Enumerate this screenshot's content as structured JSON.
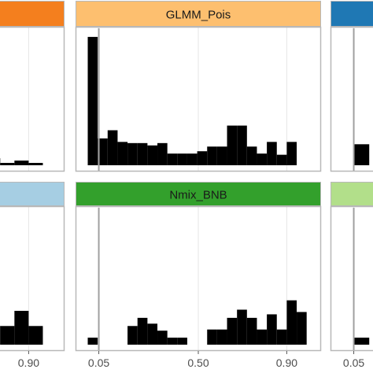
{
  "chart_data": {
    "type": "bar",
    "layout": "faceted histogram grid, 3 columns x 2 rows (image cropped on left and right)",
    "x_ticks": [
      "0.05",
      "0.50",
      "0.90"
    ],
    "reference_line_x": 0.05,
    "grid": true,
    "colors": {
      "bars": "#000000",
      "panel_border": "#b8b8b8",
      "gridline": "#e6e6e6",
      "reference_line": "#a0a0a0"
    },
    "panels": [
      {
        "row": 1,
        "col": 1,
        "strip_label": "",
        "strip_color": "#f47f1e",
        "bins": [
          [
            0.7,
            0.78,
            0.6
          ],
          [
            0.78,
            0.84,
            0.2
          ],
          [
            0.84,
            0.9,
            0.4
          ],
          [
            0.9,
            0.96,
            0.2
          ]
        ]
      },
      {
        "row": 1,
        "col": 2,
        "strip_label": "GLMM_Pois",
        "strip_color": "#fdbf6f",
        "bins": [
          [
            0.0,
            0.045,
            11.0
          ],
          [
            0.045,
            0.09,
            2.3
          ],
          [
            0.09,
            0.135,
            3.0
          ],
          [
            0.135,
            0.18,
            2.0
          ],
          [
            0.18,
            0.225,
            1.9
          ],
          [
            0.225,
            0.27,
            1.9
          ],
          [
            0.27,
            0.315,
            1.7
          ],
          [
            0.315,
            0.36,
            1.9
          ],
          [
            0.36,
            0.405,
            1.0
          ],
          [
            0.405,
            0.45,
            1.0
          ],
          [
            0.45,
            0.495,
            1.0
          ],
          [
            0.495,
            0.54,
            1.2
          ],
          [
            0.54,
            0.585,
            1.6
          ],
          [
            0.585,
            0.63,
            1.6
          ],
          [
            0.63,
            0.675,
            3.4
          ],
          [
            0.675,
            0.72,
            3.4
          ],
          [
            0.72,
            0.765,
            1.6
          ],
          [
            0.765,
            0.81,
            1.0
          ],
          [
            0.81,
            0.855,
            2.0
          ],
          [
            0.855,
            0.9,
            0.9
          ],
          [
            0.9,
            0.945,
            2.0
          ]
        ]
      },
      {
        "row": 1,
        "col": 3,
        "strip_label": "",
        "strip_color": "#1f78b4",
        "bins": [
          [
            0.05,
            0.12,
            1.8
          ]
        ]
      },
      {
        "row": 2,
        "col": 1,
        "strip_label": "",
        "strip_color": "#a6cee3",
        "bins": [
          [
            0.7,
            0.78,
            1.6
          ],
          [
            0.78,
            0.84,
            1.6
          ],
          [
            0.84,
            0.9,
            2.9
          ],
          [
            0.9,
            0.96,
            1.6
          ]
        ]
      },
      {
        "row": 2,
        "col": 2,
        "strip_label": "Nmix_BNB",
        "strip_color": "#33a02c",
        "bins": [
          [
            0.0,
            0.045,
            0.6
          ],
          [
            0.18,
            0.225,
            1.6
          ],
          [
            0.225,
            0.27,
            2.3
          ],
          [
            0.27,
            0.315,
            1.8
          ],
          [
            0.315,
            0.36,
            1.2
          ],
          [
            0.36,
            0.405,
            0.6
          ],
          [
            0.405,
            0.45,
            0.6
          ],
          [
            0.54,
            0.585,
            1.3
          ],
          [
            0.585,
            0.63,
            1.3
          ],
          [
            0.63,
            0.675,
            2.3
          ],
          [
            0.675,
            0.72,
            3.0
          ],
          [
            0.72,
            0.765,
            2.3
          ],
          [
            0.765,
            0.81,
            1.3
          ],
          [
            0.81,
            0.855,
            2.6
          ],
          [
            0.855,
            0.9,
            1.3
          ],
          [
            0.9,
            0.945,
            3.8
          ],
          [
            0.945,
            0.99,
            2.8
          ]
        ]
      },
      {
        "row": 2,
        "col": 3,
        "strip_label": "",
        "strip_color": "#b2df8a",
        "bins": [
          [
            0.05,
            0.12,
            0.6
          ]
        ]
      }
    ]
  }
}
